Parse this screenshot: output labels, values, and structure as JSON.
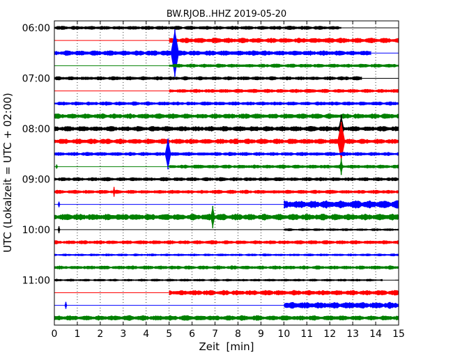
{
  "chart_data": {
    "type": "line",
    "title": "BW.RJOB..HHZ 2019-05-20",
    "xlabel": "Zeit  [min]",
    "ylabel": "UTC (Lokalzeit = UTC + 02:00)",
    "xlim": [
      0,
      15
    ],
    "x_ticks": [
      "0",
      "1",
      "2",
      "3",
      "4",
      "5",
      "6",
      "7",
      "8",
      "9",
      "10",
      "11",
      "12",
      "13",
      "14",
      "15"
    ],
    "y_ticks": [
      "06:00",
      "07:00",
      "08:00",
      "09:00",
      "10:00",
      "11:00"
    ],
    "grid": "vertical dotted",
    "colors": [
      "#000000",
      "#ff0000",
      "#0000ff",
      "#008000"
    ],
    "traces": [
      {
        "row": 0,
        "color": "#000000",
        "start": 0,
        "end": 12.5,
        "amp": 3,
        "events": []
      },
      {
        "row": 1,
        "color": "#ff0000",
        "start": 5,
        "end": 15,
        "amp": 4,
        "events": []
      },
      {
        "row": 2,
        "color": "#0000ff",
        "start": 0,
        "end": 13.8,
        "amp": 4,
        "events": [
          {
            "t": 5.25,
            "amp": 34
          }
        ]
      },
      {
        "row": 3,
        "color": "#008000",
        "start": 5,
        "end": 15,
        "amp": 3,
        "events": []
      },
      {
        "row": 4,
        "color": "#000000",
        "start": 0,
        "end": 13.4,
        "amp": 3,
        "events": []
      },
      {
        "row": 5,
        "color": "#ff0000",
        "start": 5,
        "end": 15,
        "amp": 3,
        "events": []
      },
      {
        "row": 6,
        "color": "#0000ff",
        "start": 0,
        "end": 15,
        "amp": 3,
        "events": []
      },
      {
        "row": 7,
        "color": "#008000",
        "start": 0,
        "end": 15,
        "amp": 4,
        "events": []
      },
      {
        "row": 8,
        "color": "#000000",
        "start": 0,
        "end": 15,
        "amp": 4,
        "events": [
          {
            "t": 12.5,
            "amp": 20
          }
        ]
      },
      {
        "row": 9,
        "color": "#ff0000",
        "start": 0,
        "end": 15,
        "amp": 4,
        "events": [
          {
            "t": 12.5,
            "amp": 28
          }
        ]
      },
      {
        "row": 10,
        "color": "#0000ff",
        "start": 0,
        "end": 15,
        "amp": 3,
        "events": [
          {
            "t": 4.95,
            "amp": 22
          }
        ]
      },
      {
        "row": 11,
        "color": "#008000",
        "start": 5,
        "end": 15,
        "amp": 3,
        "events": [
          {
            "t": 0.1,
            "amp": 3
          },
          {
            "t": 12.5,
            "amp": 12
          }
        ]
      },
      {
        "row": 12,
        "color": "#000000",
        "start": 0,
        "end": 15,
        "amp": 3,
        "events": []
      },
      {
        "row": 13,
        "color": "#ff0000",
        "start": 0,
        "end": 15,
        "amp": 3,
        "events": [
          {
            "t": 2.6,
            "amp": 7
          }
        ]
      },
      {
        "row": 14,
        "color": "#0000ff",
        "start": 10,
        "end": 15,
        "amp": 6,
        "events": [
          {
            "t": 0.2,
            "amp": 4
          }
        ]
      },
      {
        "row": 15,
        "color": "#008000",
        "start": 0,
        "end": 15,
        "amp": 5,
        "events": [
          {
            "t": 6.9,
            "amp": 16
          }
        ]
      },
      {
        "row": 16,
        "color": "#000000",
        "start": 10,
        "end": 15,
        "amp": 2,
        "events": [
          {
            "t": 0.2,
            "amp": 5
          }
        ]
      },
      {
        "row": 17,
        "color": "#ff0000",
        "start": 0,
        "end": 15,
        "amp": 3,
        "events": []
      },
      {
        "row": 18,
        "color": "#0000ff",
        "start": 0,
        "end": 15,
        "amp": 2,
        "events": []
      },
      {
        "row": 19,
        "color": "#008000",
        "start": 0,
        "end": 15,
        "amp": 3,
        "events": []
      },
      {
        "row": 20,
        "color": "#000000",
        "start": 0,
        "end": 14.3,
        "amp": 2,
        "events": []
      },
      {
        "row": 21,
        "color": "#ff0000",
        "start": 5,
        "end": 15,
        "amp": 4,
        "events": []
      },
      {
        "row": 22,
        "color": "#0000ff",
        "start": 10,
        "end": 15,
        "amp": 5,
        "events": [
          {
            "t": 0.5,
            "amp": 5
          }
        ]
      },
      {
        "row": 23,
        "color": "#008000",
        "start": 0,
        "end": 15,
        "amp": 4,
        "events": []
      }
    ]
  }
}
